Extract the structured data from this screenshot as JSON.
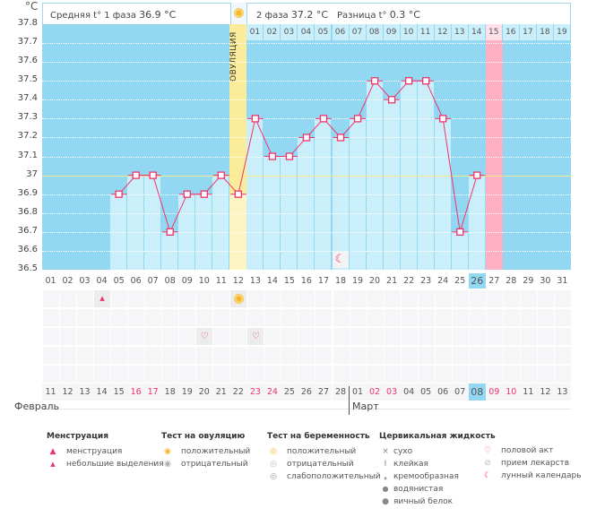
{
  "unit": "°C",
  "header": {
    "phase1_label": "Средняя t° 1 фаза",
    "phase1_value": "36.9 °C",
    "phase2_label": "2 фаза",
    "phase2_value": "37.2 °C",
    "diff_label": "Разница t°",
    "diff_value": "0.3 °C"
  },
  "ovulation_label": "ОВУЛЯЦИЯ",
  "colors": {
    "plot_bg": "#92d8f2",
    "bar": "#cbeefb",
    "ovulation": "#fbec9b",
    "line": "#f0336a",
    "expected": "#fdb0c3",
    "today": "#92d8f2",
    "coverline": "#f5e98a"
  },
  "y_axis": [
    "37.8",
    "37.7",
    "37.6",
    "37.5",
    "37.4",
    "37.3",
    "37.2",
    "37.1",
    "37",
    "36.9",
    "36.8",
    "36.7",
    "36.6",
    "36.5"
  ],
  "chart_data": {
    "type": "line",
    "ylim": [
      36.5,
      37.8
    ],
    "coverline": 37.0,
    "ovulation_day": 12,
    "expected_period_day": 27,
    "today_day": 26,
    "days": [
      1,
      2,
      3,
      4,
      5,
      6,
      7,
      8,
      9,
      10,
      11,
      12,
      13,
      14,
      15,
      16,
      17,
      18,
      19,
      20,
      21,
      22,
      23,
      24,
      25,
      26
    ],
    "temps": [
      null,
      null,
      null,
      null,
      36.9,
      37.0,
      37.0,
      36.7,
      36.9,
      36.9,
      37.0,
      36.9,
      37.3,
      37.1,
      37.1,
      37.2,
      37.3,
      37.2,
      37.3,
      37.5,
      37.4,
      37.5,
      37.5,
      37.3,
      36.7,
      37.0
    ]
  },
  "cycle_days": [
    "01",
    "02",
    "03",
    "04",
    "05",
    "06",
    "07",
    "08",
    "09",
    "10",
    "11",
    "12",
    "13",
    "14",
    "15",
    "16",
    "17",
    "18",
    "19",
    "20",
    "21",
    "22",
    "23",
    "24",
    "25",
    "26",
    "27",
    "28",
    "29",
    "30",
    "31"
  ],
  "phase2_days": [
    "01",
    "02",
    "03",
    "04",
    "05",
    "06",
    "07",
    "08",
    "09",
    "10",
    "11",
    "12",
    "13",
    "14",
    "15",
    "16",
    "17",
    "18",
    "19"
  ],
  "dates": [
    "11",
    "12",
    "13",
    "14",
    "15",
    "16",
    "17",
    "18",
    "19",
    "20",
    "21",
    "22",
    "23",
    "24",
    "25",
    "26",
    "27",
    "28",
    "01",
    "02",
    "03",
    "04",
    "05",
    "06",
    "07",
    "08",
    "09",
    "10",
    "11",
    "12",
    "13"
  ],
  "weekend_dates_idx": [
    5,
    6,
    12,
    13,
    19,
    20,
    26,
    27
  ],
  "months": {
    "feb": "Февраль",
    "mar": "Март"
  },
  "markers": [
    {
      "row": 0,
      "day": 4,
      "icon": "spotting-icon"
    },
    {
      "row": 0,
      "day": 12,
      "icon": "ovulation-positive-icon"
    },
    {
      "row": 2,
      "day": 10,
      "icon": "heart-icon"
    },
    {
      "row": 2,
      "day": 13,
      "icon": "heart-icon"
    }
  ],
  "moon_day": 18,
  "legend": {
    "menstruation": {
      "title": "Менструация",
      "items": [
        "менструация",
        "небольшие выделения"
      ]
    },
    "ovulation_test": {
      "title": "Тест на овуляцию",
      "items": [
        "положительный",
        "отрицательный"
      ]
    },
    "pregnancy_test": {
      "title": "Тест на беременность",
      "items": [
        "положительный",
        "отрицательный",
        "слабоположительный"
      ]
    },
    "cervical": {
      "title": "Цервикальная жидкость",
      "items": [
        "сухо",
        "клейкая",
        "кремообразная",
        "водянистая",
        "яичный белок"
      ]
    },
    "other": {
      "items": [
        "половой акт",
        "прием лекарств",
        "лунный календарь"
      ]
    }
  }
}
